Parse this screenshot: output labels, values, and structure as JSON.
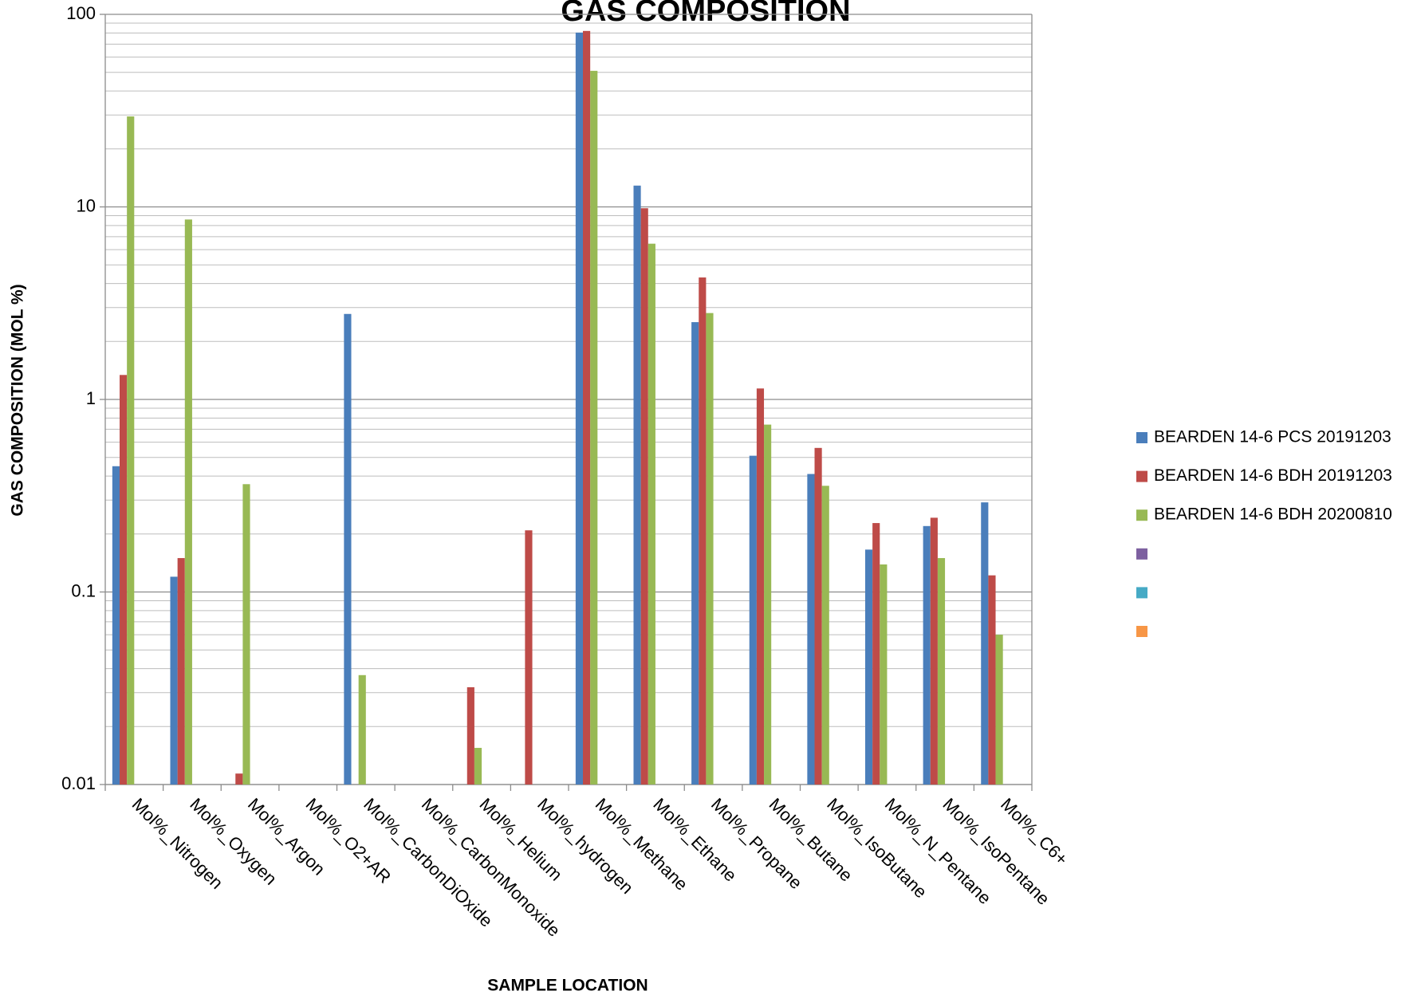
{
  "chart_data": {
    "type": "bar",
    "title": "GAS COMPOSITION",
    "x_label": "SAMPLE LOCATION",
    "y_label": "GAS COMPOSITION (MOL %)",
    "log_scale": true,
    "grid": true,
    "minor_grid": true,
    "legend_position": "right",
    "categories": [
      "Mol%_Nitrogen",
      "Mol%_Oxygen",
      "Mol%_Argon",
      "Mol%_O2+AR",
      "Mol%_CarbonDiOxide",
      "Mol%_CarbonMonoxide",
      "Mol%_Helium",
      "Mol%_hydrogen",
      "Mol%_Methane",
      "Mol%_Ethane",
      "Mol%_Propane",
      "Mol%_Butane",
      "Mol%_IsoButane",
      "Mol%_N_Pentane",
      "Mol%_IsoPentane",
      "Mol%_C6+"
    ],
    "series": [
      {
        "name": "BEARDEN 14-6 PCS 20191203",
        "color": "#4a7ebb",
        "values": [
          0.45,
          0.12,
          null,
          null,
          2.78,
          null,
          null,
          null,
          80.4,
          12.9,
          2.52,
          0.51,
          0.41,
          0.166,
          0.22,
          0.292
        ]
      },
      {
        "name": "BEARDEN 14-6 BDH 20191203",
        "color": "#be4b48",
        "values": [
          1.34,
          0.15,
          0.0114,
          null,
          null,
          null,
          0.032,
          0.209,
          82,
          9.84,
          4.3,
          1.14,
          0.56,
          0.228,
          0.243,
          0.122
        ]
      },
      {
        "name": "BEARDEN 14-6 BDH 20200810",
        "color": "#98b954",
        "values": [
          29.5,
          8.6,
          0.363,
          null,
          0.037,
          null,
          0.0155,
          null,
          50.9,
          6.44,
          2.81,
          0.74,
          0.356,
          0.139,
          0.15,
          0.06
        ]
      },
      {
        "color": "#7d60a0",
        "values": [
          null,
          null,
          null,
          null,
          null,
          null,
          null,
          null,
          null,
          null,
          null,
          null,
          null,
          null,
          null,
          null
        ]
      },
      {
        "color": "#46aac5",
        "values": [
          null,
          null,
          null,
          null,
          null,
          null,
          null,
          null,
          null,
          null,
          null,
          null,
          null,
          null,
          null,
          null
        ]
      },
      {
        "color": "#f79646",
        "values": [
          null,
          null,
          null,
          null,
          null,
          null,
          null,
          null,
          null,
          null,
          null,
          null,
          null,
          null,
          null,
          null
        ]
      }
    ],
    "ylim": [
      0.01,
      100
    ],
    "yticks": [
      0.01,
      0.1,
      1,
      10,
      100
    ]
  }
}
